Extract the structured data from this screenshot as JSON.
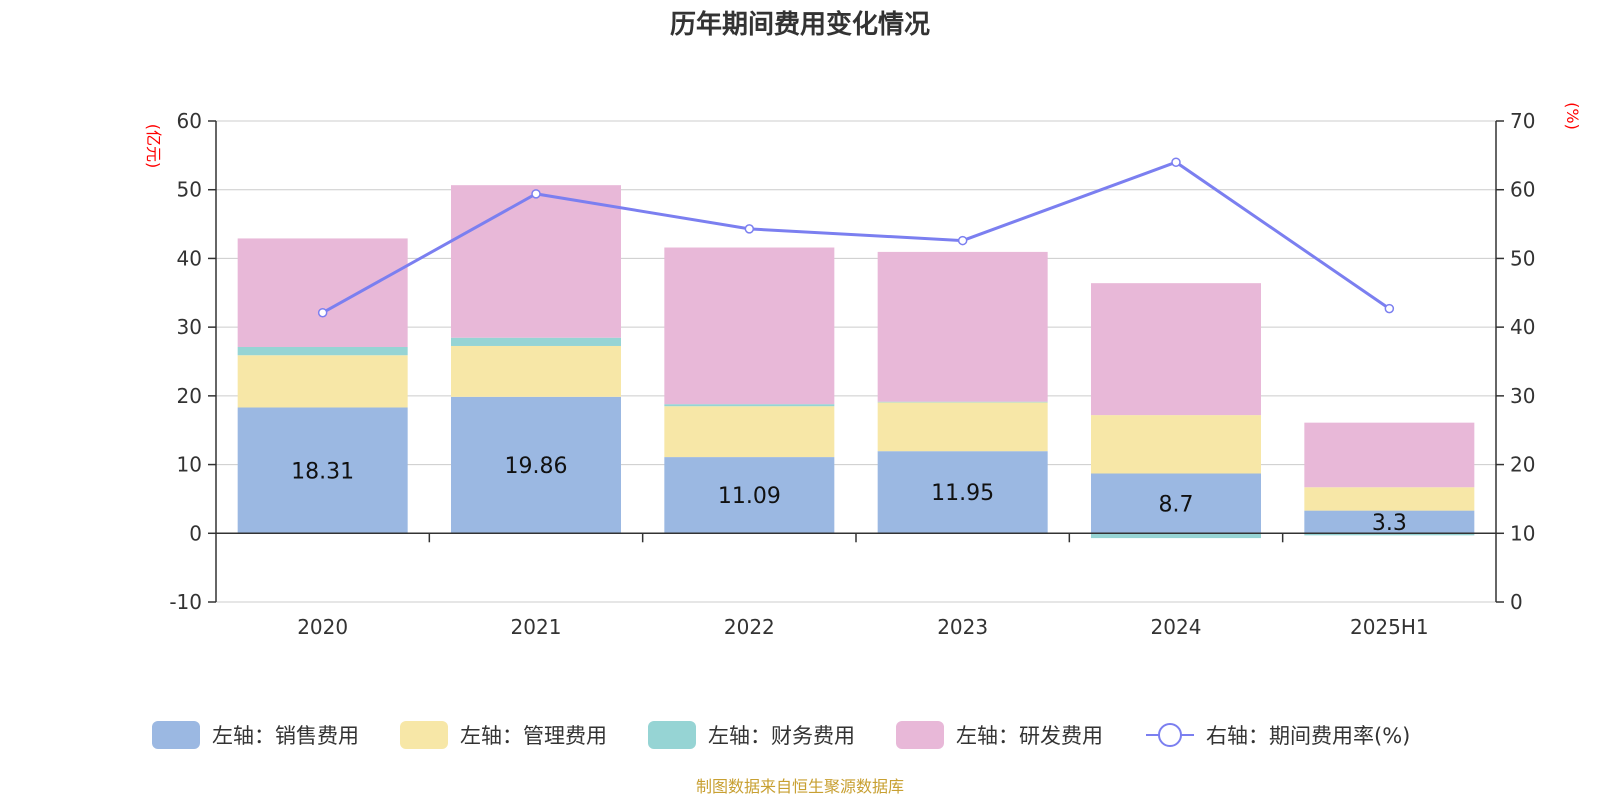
{
  "chart_data": {
    "type": "bar",
    "title": "历年期间费用变化情况",
    "categories": [
      "2020",
      "2021",
      "2022",
      "2023",
      "2024",
      "2025H1"
    ],
    "stacked": true,
    "left_axis": {
      "unit": "(亿元)",
      "range": [
        -10,
        60
      ],
      "ticks": [
        "-10",
        "0",
        "10",
        "20",
        "30",
        "40",
        "50",
        "60"
      ]
    },
    "right_axis": {
      "unit": "(%)",
      "range": [
        0,
        70
      ],
      "ticks": [
        "0",
        "10",
        "20",
        "30",
        "40",
        "50",
        "60",
        "70"
      ]
    },
    "series": [
      {
        "name": "左轴：销售费用",
        "type": "bar",
        "axis": "left",
        "color": "#9bb8e2",
        "values": [
          18.31,
          19.86,
          11.09,
          11.95,
          8.7,
          3.3
        ],
        "labels": [
          "18.31",
          "19.86",
          "11.09",
          "11.95",
          "8.7",
          "3.3"
        ]
      },
      {
        "name": "左轴：管理费用",
        "type": "bar",
        "axis": "left",
        "color": "#f7e7a7",
        "values": [
          7.6,
          7.4,
          7.4,
          7.1,
          8.5,
          3.4
        ]
      },
      {
        "name": "左轴：财务费用",
        "type": "bar",
        "axis": "left",
        "color": "#96d4d4",
        "values": [
          1.2,
          1.2,
          0.3,
          0.1,
          -0.7,
          -0.3
        ]
      },
      {
        "name": "左轴：研发费用",
        "type": "bar",
        "axis": "left",
        "color": "#e8b8d8",
        "values": [
          15.8,
          22.2,
          22.8,
          21.8,
          19.2,
          9.4
        ]
      },
      {
        "name": "右轴：期间费用率(%)",
        "type": "line",
        "axis": "right",
        "color": "#7b7ff0",
        "values": [
          42.1,
          59.4,
          54.3,
          52.6,
          64.0,
          42.7
        ]
      }
    ],
    "grid": true,
    "legend_position": "bottom"
  },
  "source_text": "制图数据来自恒生聚源数据库"
}
